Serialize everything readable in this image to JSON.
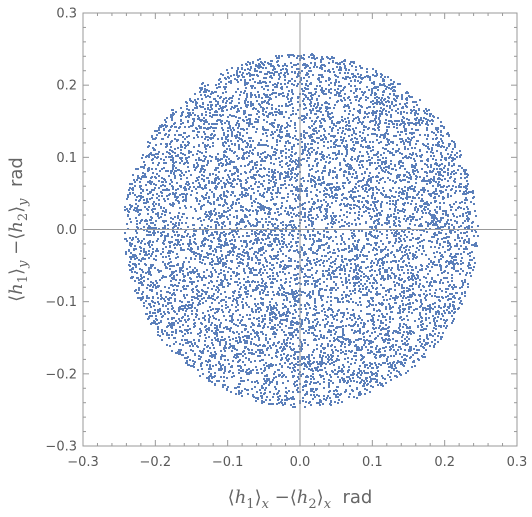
{
  "chart_data": {
    "type": "scatter",
    "title": "",
    "xlabel": {
      "text": "⟨h1⟩x −⟨h2⟩x  rad",
      "parts": [
        "⟨",
        "h",
        "1",
        "⟩",
        "x",
        " −",
        "⟨",
        "h",
        "2",
        "⟩",
        "x",
        "  rad"
      ]
    },
    "ylabel": {
      "text": "⟨h1⟩y −⟨h2⟩y  rad",
      "parts": [
        "⟨",
        "h",
        "1",
        "⟩",
        "y",
        " −",
        "⟨",
        "h",
        "2",
        "⟩",
        "y",
        "  rad"
      ]
    },
    "xlim": [
      -0.3,
      0.3
    ],
    "ylim": [
      -0.3,
      0.3
    ],
    "x_ticks": [
      -0.3,
      -0.2,
      -0.1,
      0.0,
      0.1,
      0.2,
      0.3
    ],
    "y_ticks": [
      -0.3,
      -0.2,
      -0.1,
      0.0,
      0.1,
      0.2,
      0.3
    ],
    "x_tick_labels": [
      "−0.3",
      "−0.2",
      "−0.1",
      "0.0",
      "0.1",
      "0.2",
      "0.3"
    ],
    "y_tick_labels": [
      "−0.3",
      "−0.2",
      "−0.1",
      "0.0",
      "0.1",
      "0.2",
      "0.3"
    ],
    "grid": false,
    "zero_axes": true,
    "marker_color": "#5b7fba",
    "series": [
      {
        "description": "approximately uniform point cloud filling a disc",
        "distribution": "uniform disc",
        "center": [
          0.0,
          0.0
        ],
        "radius": 0.245,
        "approx_points": 9000
      }
    ]
  }
}
